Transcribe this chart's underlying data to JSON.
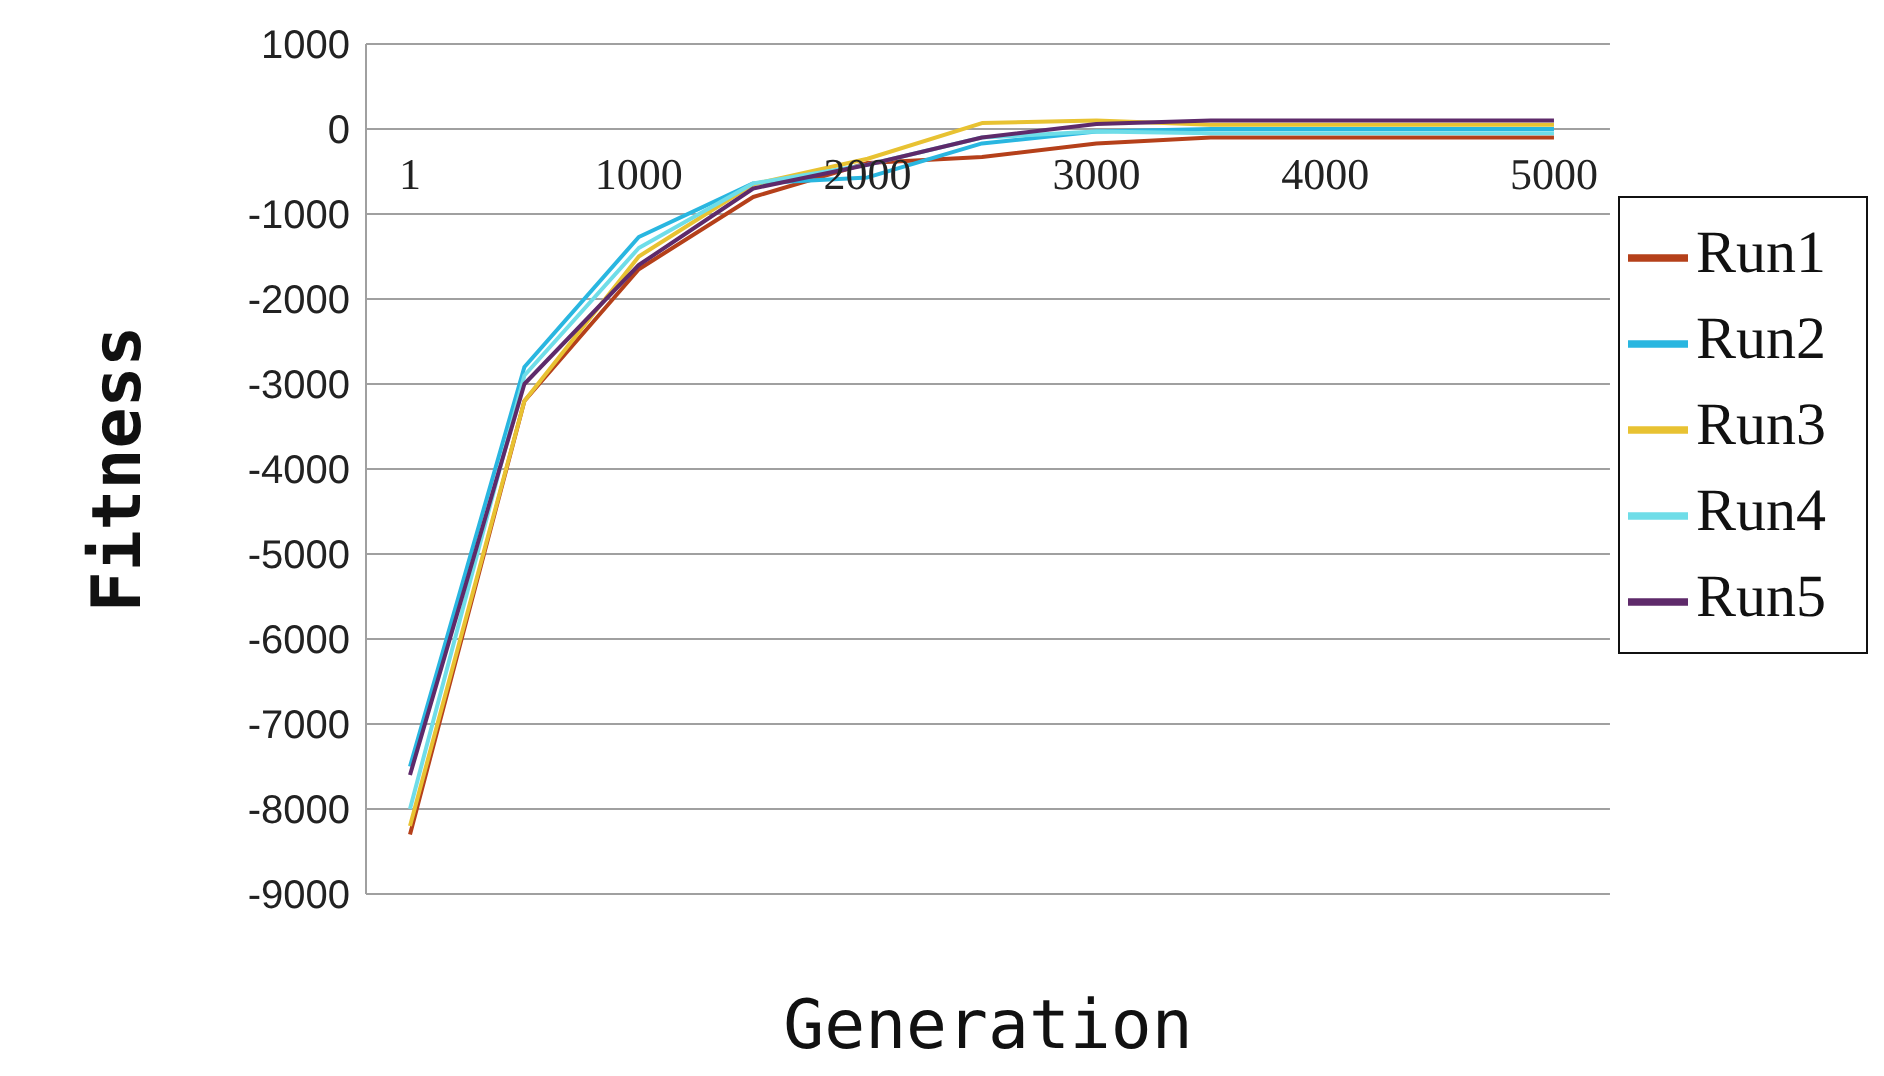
{
  "chart_data": {
    "type": "line",
    "xlabel": "Generation",
    "ylabel": "Fitness",
    "categories": [
      "1",
      null,
      "1000",
      null,
      "2000",
      null,
      "3000",
      null,
      "4000",
      null,
      "5000"
    ],
    "series": [
      {
        "name": "Run1",
        "color": "#b5401a",
        "values": [
          -8300,
          -3200,
          -1650,
          -800,
          -400,
          -330,
          -170,
          -100,
          -100,
          -100,
          -100
        ]
      },
      {
        "name": "Run2",
        "color": "#29b6e0",
        "values": [
          -7500,
          -2800,
          -1270,
          -640,
          -570,
          -170,
          -30,
          0,
          0,
          0,
          0
        ]
      },
      {
        "name": "Run3",
        "color": "#e8c232",
        "values": [
          -8200,
          -3200,
          -1500,
          -650,
          -350,
          70,
          100,
          50,
          50,
          50,
          50
        ]
      },
      {
        "name": "Run4",
        "color": "#6fdde8",
        "values": [
          -8000,
          -2900,
          -1400,
          -640,
          -420,
          -100,
          -30,
          -50,
          -50,
          -50,
          -50
        ]
      },
      {
        "name": "Run5",
        "color": "#5e2a6a",
        "values": [
          -7600,
          -3000,
          -1600,
          -700,
          -420,
          -100,
          60,
          100,
          100,
          100,
          100
        ]
      }
    ],
    "ylim": [
      -9000,
      1000
    ],
    "yticks": [
      -9000,
      -8000,
      -7000,
      -6000,
      -5000,
      -4000,
      -3000,
      -2000,
      -1000,
      0,
      1000
    ],
    "grid": "y",
    "legend": "right",
    "marker": "none",
    "line_style": "solid"
  }
}
